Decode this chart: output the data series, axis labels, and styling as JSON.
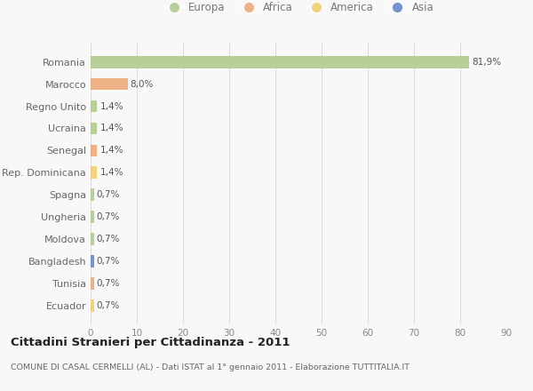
{
  "countries": [
    "Romania",
    "Marocco",
    "Regno Unito",
    "Ucraina",
    "Senegal",
    "Rep. Dominicana",
    "Spagna",
    "Ungheria",
    "Moldova",
    "Bangladesh",
    "Tunisia",
    "Ecuador"
  ],
  "values": [
    81.9,
    8.0,
    1.4,
    1.4,
    1.4,
    1.4,
    0.7,
    0.7,
    0.7,
    0.7,
    0.7,
    0.7
  ],
  "labels": [
    "81,9%",
    "8,0%",
    "1,4%",
    "1,4%",
    "1,4%",
    "1,4%",
    "0,7%",
    "0,7%",
    "0,7%",
    "0,7%",
    "0,7%",
    "0,7%"
  ],
  "continents": [
    "Europa",
    "Africa",
    "Europa",
    "Europa",
    "Africa",
    "America",
    "Europa",
    "Europa",
    "Europa",
    "Asia",
    "Africa",
    "America"
  ],
  "colors": {
    "Europa": "#b0cc90",
    "Africa": "#eeaa7a",
    "America": "#f0d070",
    "Asia": "#6688cc"
  },
  "xlim": [
    0,
    90
  ],
  "xticks": [
    0,
    10,
    20,
    30,
    40,
    50,
    60,
    70,
    80,
    90
  ],
  "title": "Cittadini Stranieri per Cittadinanza - 2011",
  "subtitle": "COMUNE DI CASAL CERMELLI (AL) - Dati ISTAT al 1° gennaio 2011 - Elaborazione TUTTITALIA.IT",
  "background_color": "#f8f8f8",
  "grid_color": "#dddddd",
  "bar_height": 0.55,
  "figsize": [
    6.0,
    4.4
  ],
  "dpi": 100,
  "legend_order": [
    "Europa",
    "Africa",
    "America",
    "Asia"
  ]
}
